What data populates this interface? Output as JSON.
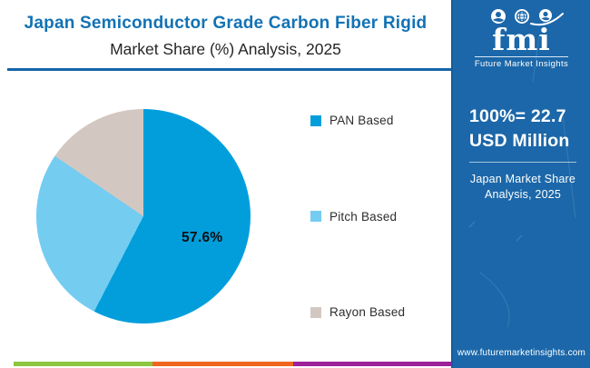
{
  "header": {
    "title_line1": "Japan Semiconductor Grade Carbon Fiber Rigid",
    "title_line2": "Market Share (%) Analysis, 2025"
  },
  "chart_data": {
    "type": "pie",
    "title": "Japan Semiconductor Grade Carbon Fiber Rigid Market Share (%) Analysis, 2025",
    "categories": [
      "PAN Based",
      "Pitch Based",
      "Rayon Based"
    ],
    "values": [
      57.6,
      26.9,
      15.5
    ],
    "value_labels": [
      "57.6%",
      "",
      ""
    ],
    "colors": [
      "#029EDC",
      "#74CCF1",
      "#D3C8C1"
    ],
    "start_angle_deg": 0,
    "direction": "clockwise",
    "legend_position": "right",
    "total_note": "100%= 22.7 USD Million"
  },
  "sidebar": {
    "background": "#1B67A9",
    "logo": {
      "word": "fmi",
      "tagline": "Future Market Insights",
      "icon_names": [
        "person-icon",
        "globe-icon",
        "person-globe-icon"
      ]
    },
    "stat_line1": "100%= 22.7",
    "stat_line2": "USD Million",
    "subtitle_line1": "Japan Market Share",
    "subtitle_line2": "Analysis, 2025",
    "website": "www.futuremarketinsights.com"
  },
  "footer": {
    "stripe_colors": [
      "#8DC63F",
      "#F1661F",
      "#9C219B"
    ]
  },
  "colors": {
    "title_blue": "#1372B4",
    "divider_blue": "#1565A7"
  }
}
